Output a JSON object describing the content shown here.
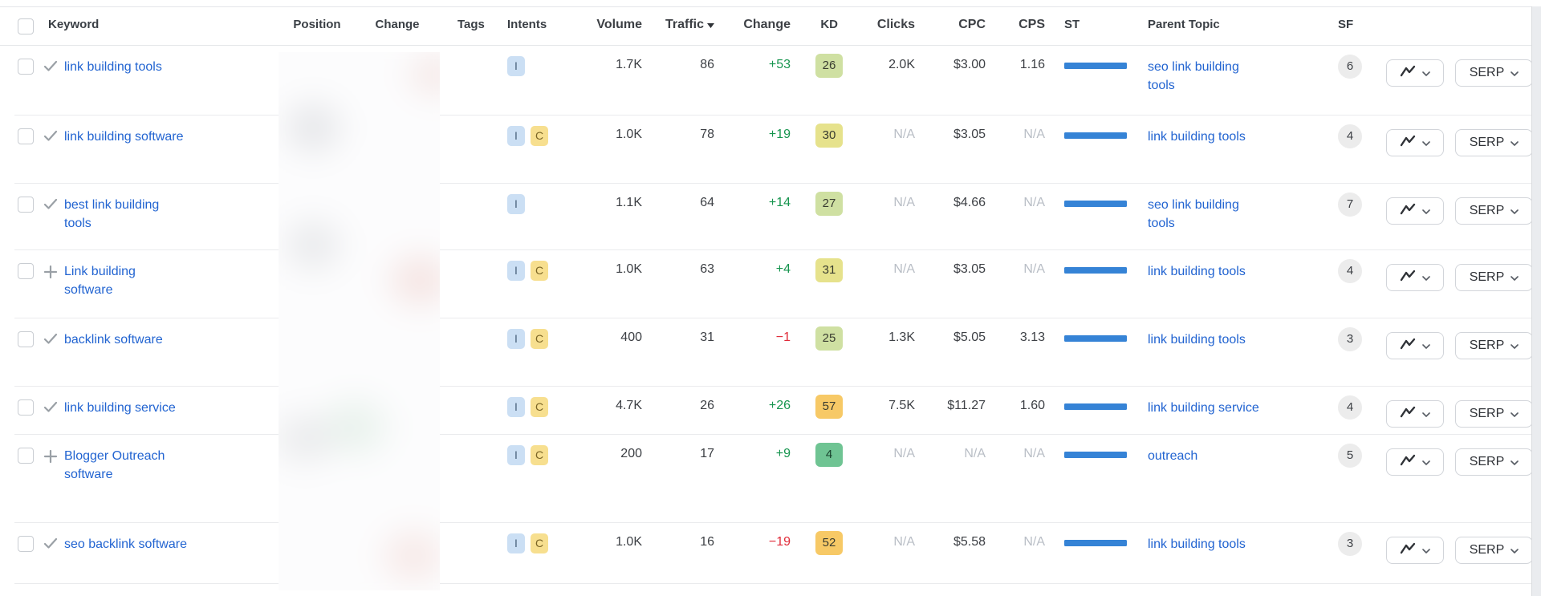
{
  "header": {
    "keyword": "Keyword",
    "position": "Position",
    "position_change": "Change",
    "tags": "Tags",
    "intents": "Intents",
    "volume": "Volume",
    "traffic": "Traffic",
    "traffic_change": "Change",
    "kd": "KD",
    "clicks": "Clicks",
    "cpc": "CPC",
    "cps": "CPS",
    "st": "ST",
    "parent_topic": "Parent Topic",
    "sf": "SF"
  },
  "buttons": {
    "serp": "SERP"
  },
  "colors": {
    "link_blue": "#2264d1",
    "st_bar_blue": "#3583d6",
    "kd_green_light": "#cfe0a2",
    "kd_yellow": "#e6e28c",
    "kd_amber": "#f7c966",
    "kd_green": "#6fc493",
    "positive_green": "#17954f",
    "negative_red": "#e02b39",
    "intent_informational_bg": "#cbdff4",
    "intent_commercial_bg": "#f7df8f"
  },
  "rows": [
    {
      "keyword": "link building tools",
      "icon": "check",
      "intents": [
        "I"
      ],
      "volume": "1.7K",
      "traffic": "86",
      "traffic_change": "+53",
      "traffic_change_dir": "pos",
      "kd": "26",
      "kd_level": "green-light",
      "clicks": "2.0K",
      "cpc": "$3.00",
      "cps": "1.16",
      "parent_topic": "seo link building\ntools",
      "sf": "6"
    },
    {
      "keyword": "link building software",
      "icon": "check",
      "intents": [
        "I",
        "C"
      ],
      "volume": "1.0K",
      "traffic": "78",
      "traffic_change": "+19",
      "traffic_change_dir": "pos",
      "kd": "30",
      "kd_level": "yellow",
      "clicks": "N/A",
      "cpc": "$3.05",
      "cps": "N/A",
      "parent_topic": "link building tools",
      "sf": "4"
    },
    {
      "keyword": "best link building\ntools",
      "icon": "check",
      "intents": [
        "I"
      ],
      "volume": "1.1K",
      "traffic": "64",
      "traffic_change": "+14",
      "traffic_change_dir": "pos",
      "kd": "27",
      "kd_level": "green-light",
      "clicks": "N/A",
      "cpc": "$4.66",
      "cps": "N/A",
      "parent_topic": "seo link building\ntools",
      "sf": "7"
    },
    {
      "keyword": "Link building\nsoftware",
      "icon": "plus",
      "intents": [
        "I",
        "C"
      ],
      "volume": "1.0K",
      "traffic": "63",
      "traffic_change": "+4",
      "traffic_change_dir": "pos",
      "kd": "31",
      "kd_level": "yellow",
      "clicks": "N/A",
      "cpc": "$3.05",
      "cps": "N/A",
      "parent_topic": "link building tools",
      "sf": "4"
    },
    {
      "keyword": "backlink software",
      "icon": "check",
      "intents": [
        "I",
        "C"
      ],
      "volume": "400",
      "traffic": "31",
      "traffic_change": "−1",
      "traffic_change_dir": "neg",
      "kd": "25",
      "kd_level": "green-light",
      "clicks": "1.3K",
      "cpc": "$5.05",
      "cps": "3.13",
      "parent_topic": "link building tools",
      "sf": "3"
    },
    {
      "keyword": "link building service",
      "icon": "check",
      "intents": [
        "I",
        "C"
      ],
      "volume": "4.7K",
      "traffic": "26",
      "traffic_change": "+26",
      "traffic_change_dir": "pos",
      "kd": "57",
      "kd_level": "amber",
      "clicks": "7.5K",
      "cpc": "$11.27",
      "cps": "1.60",
      "parent_topic": "link building service",
      "sf": "4"
    },
    {
      "keyword": "Blogger Outreach\nsoftware",
      "icon": "plus",
      "intents": [
        "I",
        "C"
      ],
      "volume": "200",
      "traffic": "17",
      "traffic_change": "+9",
      "traffic_change_dir": "pos",
      "kd": "4",
      "kd_level": "green",
      "clicks": "N/A",
      "cpc": "N/A",
      "cps": "N/A",
      "parent_topic": "outreach",
      "sf": "5"
    },
    {
      "keyword": "seo backlink software",
      "icon": "check",
      "intents": [
        "I",
        "C"
      ],
      "volume": "1.0K",
      "traffic": "16",
      "traffic_change": "−19",
      "traffic_change_dir": "neg",
      "kd": "52",
      "kd_level": "amber",
      "clicks": "N/A",
      "cpc": "$5.58",
      "cps": "N/A",
      "parent_topic": "link building tools",
      "sf": "3"
    }
  ]
}
